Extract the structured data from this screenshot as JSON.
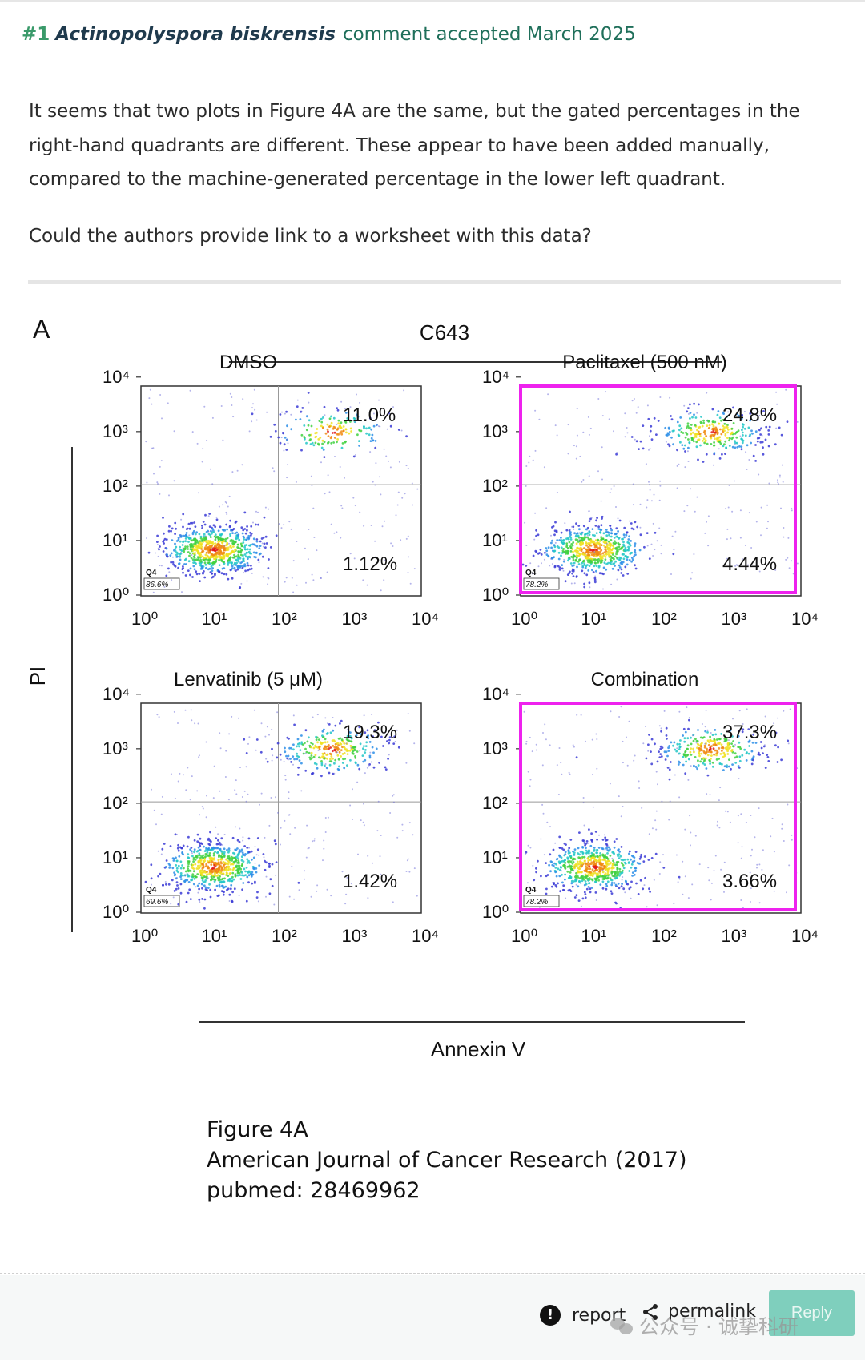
{
  "comment": {
    "number": "#1",
    "species": "Actinopolyspora biskrensis",
    "status": "comment accepted March 2025",
    "body": [
      "It seems that two plots in Figure 4A are the same, but the gated percentages in the right-hand quadrants are different. These appear to have been added manually, compared to the machine-generated percentage in the lower left quadrant.",
      "Could the authors provide link to a worksheet with this data?"
    ]
  },
  "figure": {
    "panel_letter": "A",
    "cell_line": "C643",
    "y_axis_label": "PI",
    "x_axis_label": "Annexin V",
    "tick_labels": [
      "10⁰",
      "10¹",
      "10²",
      "10³",
      "10⁴"
    ],
    "plots": [
      {
        "title": "DMSO",
        "upper_right": "11.0%",
        "lower_right": "1.12%",
        "q4_label": "Q4",
        "q4_value": "86.6%",
        "highlighted": false
      },
      {
        "title": "Paclitaxel (500 nM)",
        "upper_right": "24.8%",
        "lower_right": "4.44%",
        "q4_label": "Q4",
        "q4_value": "78.2%",
        "highlighted": true
      },
      {
        "title": "Lenvatinib (5 μM)",
        "upper_right": "19.3%",
        "lower_right": "1.42%",
        "q4_label": "Q4",
        "q4_value": "69.6%",
        "highlighted": false
      },
      {
        "title": "Combination",
        "upper_right": "37.3%",
        "lower_right": "3.66%",
        "q4_label": "Q4",
        "q4_value": "78.2%",
        "highlighted": true
      }
    ],
    "highlight_color": "#ee22ee"
  },
  "caption": {
    "line1": "Figure 4A",
    "line2": "American Journal of Cancer Research (2017)",
    "line3": "pubmed: 28469962"
  },
  "footer": {
    "report_label": "report",
    "permalink_label": "permalink",
    "reply_label": "Reply",
    "watermark_text": "公众号 · 诚挚科研"
  },
  "colors": {
    "accent_green": "#3a9a6a",
    "reply_bg": "#7fcfbd",
    "link_dark": "#1f3a4d"
  }
}
